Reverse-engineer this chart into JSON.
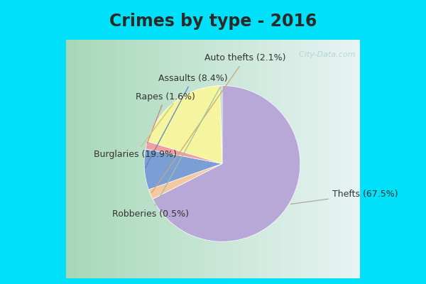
{
  "title": "Crimes by type - 2016",
  "slices": [
    {
      "label": "Thefts (67.5%)",
      "value": 67.5,
      "color": "#b8a8d8"
    },
    {
      "label": "Auto thefts (2.1%)",
      "value": 2.1,
      "color": "#f5c9a0"
    },
    {
      "label": "Assaults (8.4%)",
      "value": 8.4,
      "color": "#7b9ed4"
    },
    {
      "label": "Rapes (1.6%)",
      "value": 1.6,
      "color": "#f0a0a0"
    },
    {
      "label": "Burglaries (19.9%)",
      "value": 19.9,
      "color": "#f5f5a0"
    },
    {
      "label": "Robberies (0.5%)",
      "value": 0.5,
      "color": "#c8d8b8"
    }
  ],
  "bg_color_left": "#a8d8b8",
  "bg_color_right": "#e8f4f4",
  "border_color": "#00e0f8",
  "title_fontsize": 17,
  "label_fontsize": 9,
  "watermark": "  City-Data.com",
  "title_color": "#2a2a2a"
}
